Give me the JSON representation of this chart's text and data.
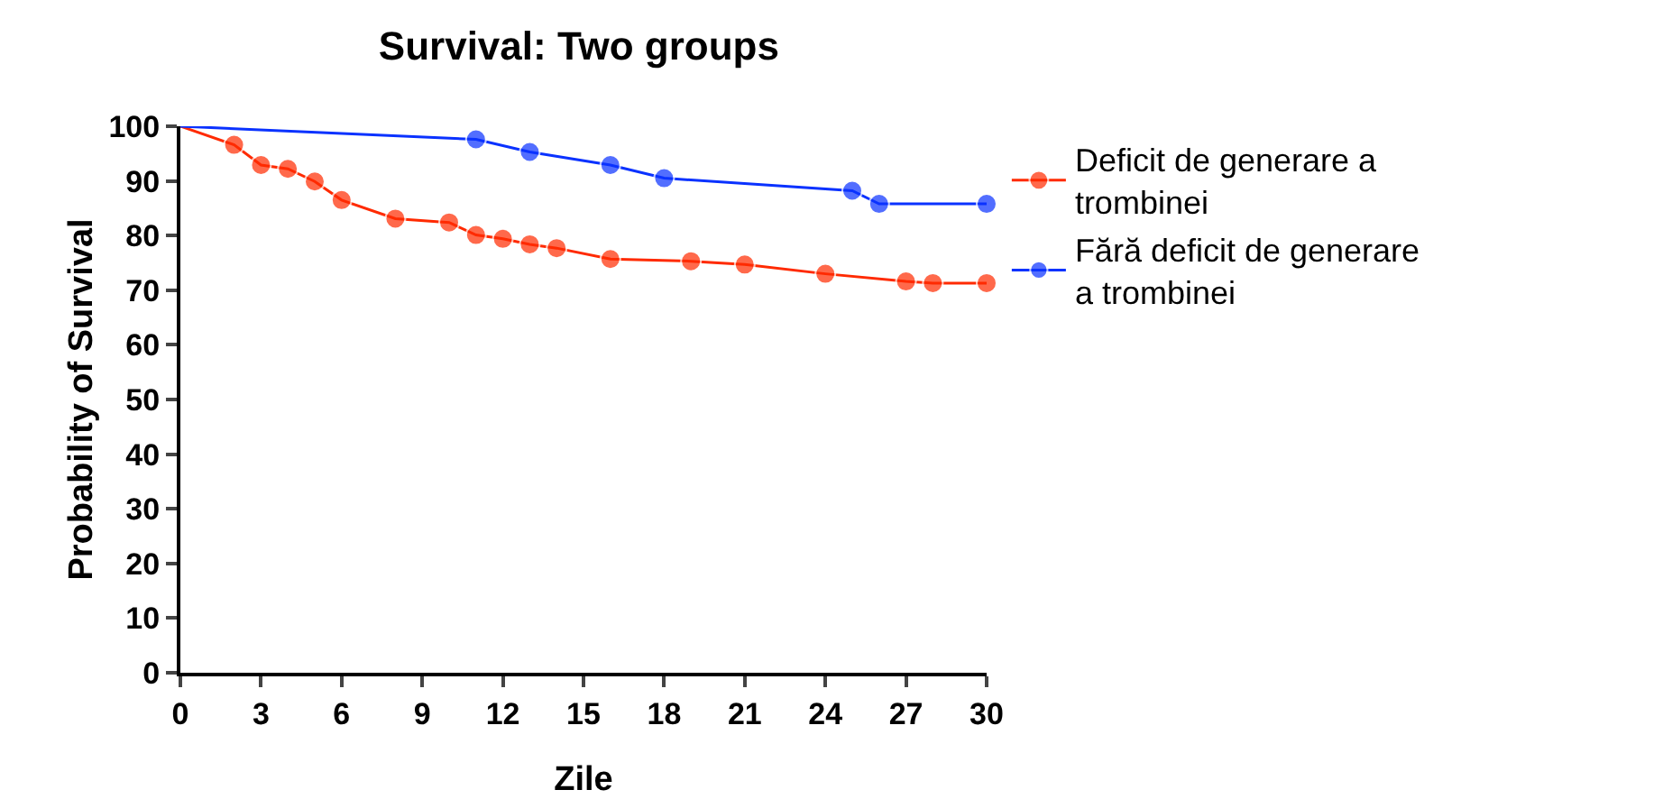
{
  "chart_data": {
    "type": "line",
    "title": "Survival: Two groups",
    "xlabel": "Zile",
    "ylabel": "Probability of Survival",
    "xlim": [
      0,
      30
    ],
    "xticks": [
      0,
      3,
      6,
      9,
      12,
      15,
      18,
      21,
      24,
      27,
      30
    ],
    "ylim": [
      0,
      100
    ],
    "yticks": [
      0,
      10,
      20,
      30,
      40,
      50,
      60,
      70,
      80,
      90,
      100
    ],
    "grid": false,
    "legend": "right",
    "marker": "circle",
    "line_style": "solid",
    "series": [
      {
        "name": "Deficit de generare a trombinei",
        "color": "#ff2a00",
        "x": [
          0,
          2,
          3,
          4,
          5,
          6,
          8,
          10,
          11,
          12,
          13,
          14,
          16,
          19,
          21,
          24,
          27,
          28,
          30
        ],
        "values": [
          100,
          96.6,
          92.9,
          92.2,
          89.9,
          86.5,
          83.1,
          82.4,
          80.1,
          79.4,
          78.4,
          77.7,
          75.7,
          75.3,
          74.7,
          73,
          71.6,
          71.3,
          71.3
        ]
      },
      {
        "name": "Fără deficit de generare a trombinei",
        "color": "#0a32ff",
        "x": [
          0,
          11,
          13,
          16,
          18,
          25,
          26,
          30
        ],
        "values": [
          100,
          97.6,
          95.3,
          92.9,
          90.5,
          88.2,
          85.8,
          85.8
        ]
      }
    ]
  }
}
